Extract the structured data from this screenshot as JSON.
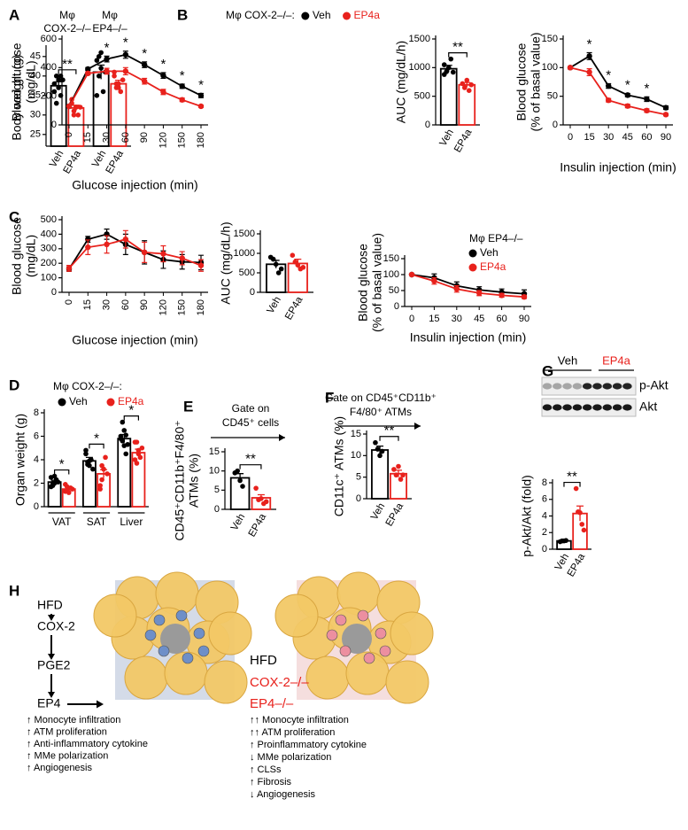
{
  "panels": [
    "A",
    "B",
    "C",
    "D",
    "E",
    "F",
    "G",
    "H"
  ],
  "chart_data": [
    {
      "type": "bar",
      "categories": [
        [
          "Mφ",
          "COX-2–/–"
        ],
        [
          "Mφ",
          "EP4–/–"
        ]
      ],
      "ylabel": [
        "Body weight (g)"
      ],
      "ylim": [
        22,
        47
      ],
      "yticks": [
        25,
        30,
        35,
        40,
        45
      ],
      "significance": [
        "**",
        null
      ],
      "series": [
        {
          "name": "Veh",
          "color": "#000000",
          "values": [
            37.5,
            41
          ],
          "errors": [
            1.0,
            1.8
          ],
          "points": [
            [
              38,
              40,
              37,
              35,
              39,
              36,
              33,
              39,
              40
            ],
            [
              44,
              40,
              46,
              36,
              41,
              35,
              45,
              42
            ]
          ]
        },
        {
          "name": "EP4a",
          "color": "#e8211c",
          "values": [
            31.8,
            38
          ],
          "errors": [
            0.7,
            0.9
          ],
          "points": [
            [
              33,
              31,
              32,
              30,
              32,
              34,
              30,
              32
            ],
            [
              40,
              38,
              37,
              36,
              39,
              41,
              37,
              38
            ]
          ]
        }
      ]
    },
    {
      "type": "line",
      "legend_title": "Mφ COX-2–/–:",
      "categories": [
        "0",
        "15",
        "30",
        "60",
        "90",
        "120",
        "150",
        "180"
      ],
      "xlabel": "Glucose injection (min)",
      "ylabel": [
        "Blood glucose",
        "(mg/dL)"
      ],
      "ylim": [
        0,
        600
      ],
      "yticks": [
        0,
        200,
        400,
        600
      ],
      "significance": [
        null,
        null,
        "*",
        "*",
        "*",
        "*",
        "*",
        "*"
      ],
      "series": [
        {
          "name": "Veh",
          "color": "#000000",
          "values": [
            130,
            390,
            460,
            490,
            420,
            345,
            270,
            205
          ],
          "errors": [
            5,
            10,
            20,
            25,
            20,
            20,
            15,
            15
          ]
        },
        {
          "name": "EP4a",
          "color": "#e8211c",
          "values": [
            130,
            360,
            375,
            375,
            305,
            230,
            175,
            130
          ],
          "errors": [
            5,
            10,
            20,
            25,
            20,
            18,
            12,
            8
          ]
        }
      ]
    },
    {
      "type": "bar",
      "categories": [
        null
      ],
      "ylabel": [
        "AUC (mg/dL/h)"
      ],
      "ylim": [
        0,
        1500
      ],
      "yticks": [
        0,
        500,
        1000,
        1500
      ],
      "significance": [
        "**"
      ],
      "series": [
        {
          "name": "Veh",
          "color": "#000000",
          "values": [
            980
          ],
          "errors": [
            60
          ],
          "points": [
            [
              1050,
              930,
              1000,
              1150,
              920,
              880
            ]
          ]
        },
        {
          "name": "EP4a",
          "color": "#e8211c",
          "values": [
            700
          ],
          "errors": [
            40
          ],
          "points": [
            [
              720,
              650,
              780,
              600,
              700
            ]
          ]
        }
      ]
    },
    {
      "type": "line",
      "categories": [
        "0",
        "15",
        "30",
        "45",
        "60",
        "90"
      ],
      "xlabel": "Insulin injection (min)",
      "ylabel": [
        "Blood glucose",
        "(% of basal value)"
      ],
      "ylim": [
        0,
        150
      ],
      "yticks": [
        0,
        50,
        100,
        150
      ],
      "significance": [
        null,
        "*",
        "*",
        "*",
        "*",
        null
      ],
      "series": [
        {
          "name": "Veh",
          "color": "#000000",
          "values": [
            100,
            120,
            68,
            52,
            45,
            30
          ],
          "errors": [
            2,
            6,
            4,
            3,
            4,
            3
          ]
        },
        {
          "name": "EP4a",
          "color": "#e8211c",
          "values": [
            100,
            92,
            43,
            33,
            25,
            18
          ],
          "errors": [
            2,
            6,
            3,
            3,
            3,
            2
          ]
        }
      ]
    },
    {
      "type": "line",
      "categories": [
        "0",
        "15",
        "30",
        "60",
        "90",
        "120",
        "150",
        "180"
      ],
      "xlabel": "Glucose injection (min)",
      "ylabel": [
        "Blood glucose",
        "(mg/dL)"
      ],
      "ylim": [
        0,
        500
      ],
      "yticks": [
        0,
        100,
        200,
        300,
        400,
        500
      ],
      "series": [
        {
          "name": "Veh",
          "color": "#000000",
          "values": [
            160,
            365,
            400,
            330,
            275,
            225,
            210,
            205
          ],
          "errors": [
            15,
            20,
            35,
            70,
            80,
            60,
            50,
            50
          ]
        },
        {
          "name": "EP4a",
          "color": "#e8211c",
          "values": [
            165,
            310,
            330,
            365,
            275,
            265,
            235,
            185
          ],
          "errors": [
            20,
            50,
            60,
            60,
            70,
            55,
            45,
            40
          ]
        }
      ]
    },
    {
      "type": "bar",
      "categories": [
        null
      ],
      "ylabel": [
        "AUC (mg/dL/h)"
      ],
      "ylim": [
        0,
        1500
      ],
      "yticks": [
        0,
        500,
        1000,
        1500
      ],
      "series": [
        {
          "name": "Veh",
          "color": "#000000",
          "values": [
            720
          ],
          "errors": [
            100
          ],
          "points": [
            [
              900,
              850,
              720,
              500,
              600
            ]
          ]
        },
        {
          "name": "EP4a",
          "color": "#e8211c",
          "values": [
            740
          ],
          "errors": [
            110
          ],
          "points": [
            [
              950,
              780,
              700,
              600,
              640
            ]
          ]
        }
      ]
    },
    {
      "type": "line",
      "legend_title": "Mφ EP4–/–",
      "categories": [
        "0",
        "15",
        "30",
        "45",
        "60",
        "90"
      ],
      "xlabel": "Insulin injection (min)",
      "ylabel": [
        "Blood glucose",
        "(% of basal value)"
      ],
      "ylim": [
        0,
        150
      ],
      "yticks": [
        0,
        50,
        100,
        150
      ],
      "series": [
        {
          "name": "Veh",
          "color": "#000000",
          "values": [
            100,
            90,
            65,
            52,
            45,
            40
          ],
          "errors": [
            2,
            12,
            12,
            10,
            10,
            12
          ]
        },
        {
          "name": "EP4a",
          "color": "#e8211c",
          "values": [
            100,
            80,
            55,
            42,
            35,
            30
          ],
          "errors": [
            2,
            10,
            10,
            8,
            6,
            5
          ]
        }
      ]
    },
    {
      "type": "bar",
      "legend_title": "Mφ COX-2–/–:",
      "categories": [
        "VAT",
        "SAT",
        "Liver"
      ],
      "ylabel": [
        "Organ weight (g)"
      ],
      "ylim": [
        0,
        8
      ],
      "yticks": [
        0,
        2,
        4,
        6,
        8
      ],
      "significance": [
        "*",
        "*",
        "*"
      ],
      "series": [
        {
          "name": "Veh",
          "color": "#000000",
          "values": [
            2.1,
            3.9,
            5.8
          ],
          "errors": [
            0.15,
            0.3,
            0.35
          ],
          "points": [
            [
              2.5,
              1.8,
              2.0,
              2.3,
              2.1,
              1.7,
              2.0,
              2.6
            ],
            [
              4.5,
              3.8,
              3.5,
              4.0,
              3.2,
              4.8,
              3.6,
              3.9
            ],
            [
              5.8,
              7.2,
              6.5,
              4.5,
              5.3,
              6.0,
              5.6,
              5.2,
              6.1
            ]
          ]
        },
        {
          "name": "EP4a",
          "color": "#e8211c",
          "values": [
            1.5,
            2.8,
            4.6
          ],
          "errors": [
            0.12,
            0.35,
            0.3
          ],
          "points": [
            [
              1.3,
              1.7,
              1.2,
              1.6,
              1.5,
              1.9,
              1.4
            ],
            [
              1.5,
              2.3,
              3.2,
              4.2,
              2.8,
              1.8,
              3.5
            ],
            [
              5.5,
              3.7,
              4.8,
              4.2,
              5.0,
              4.0,
              5.5,
              4.5
            ]
          ]
        }
      ]
    },
    {
      "type": "bar",
      "title": [
        "Gate on",
        "CD45⁺ cells"
      ],
      "categories": [
        null
      ],
      "ylabel": [
        "CD45⁺CD11b⁺F4/80⁺",
        "ATMs (%)"
      ],
      "ylim": [
        0,
        15
      ],
      "yticks": [
        0,
        5,
        10,
        15
      ],
      "significance": [
        "**"
      ],
      "series": [
        {
          "name": "Veh",
          "color": "#000000",
          "values": [
            8.2
          ],
          "errors": [
            1.1
          ],
          "points": [
            [
              9.5,
              10,
              7.5,
              6
            ]
          ]
        },
        {
          "name": "EP4a",
          "color": "#e8211c",
          "values": [
            3.0
          ],
          "errors": [
            0.8
          ],
          "points": [
            [
              5.5,
              2.5,
              2.8,
              1.5,
              2
            ]
          ]
        }
      ]
    },
    {
      "type": "bar",
      "title": [
        "Gate on CD45⁺CD11b⁺",
        "F4/80⁺ ATMs"
      ],
      "categories": [
        null
      ],
      "ylabel": [
        "CD11c⁺ ATMs (%)"
      ],
      "ylim": [
        0,
        15
      ],
      "yticks": [
        0,
        5,
        10,
        15
      ],
      "significance": [
        "**"
      ],
      "series": [
        {
          "name": "Veh",
          "color": "#000000",
          "values": [
            11.3
          ],
          "errors": [
            0.9
          ],
          "points": [
            [
              13,
              11.5,
              10,
              11
            ]
          ]
        },
        {
          "name": "EP4a",
          "color": "#e8211c",
          "values": [
            5.8
          ],
          "errors": [
            0.8
          ],
          "points": [
            [
              6.8,
              5.5,
              7.5,
              4.5,
              5.5
            ]
          ]
        }
      ]
    },
    {
      "type": "bar",
      "categories": [
        null
      ],
      "ylabel": [
        "p-Akt/Akt (fold)"
      ],
      "ylim": [
        0,
        8
      ],
      "yticks": [
        0,
        2,
        4,
        6,
        8
      ],
      "significance": [
        "**"
      ],
      "series": [
        {
          "name": "Veh",
          "color": "#000000",
          "values": [
            1.0
          ],
          "errors": [
            0.05
          ],
          "points": [
            [
              0.9,
              1,
              1,
              1.05
            ]
          ]
        },
        {
          "name": "EP4a",
          "color": "#e8211c",
          "values": [
            4.3
          ],
          "errors": [
            0.9
          ],
          "points": [
            [
              7.3,
              4.5,
              4.4,
              3,
              2.3
            ]
          ]
        }
      ]
    }
  ],
  "blot": {
    "groups": [
      "Veh",
      "EP4a"
    ],
    "rows": [
      "p-Akt",
      "Akt"
    ]
  },
  "diagram": {
    "left_chain": [
      "HFD",
      "COX-2",
      "PGE2",
      "EP4"
    ],
    "left_effects": [
      "↑ Monocyte infiltration",
      "↑ ATM proliferation",
      "↑ Anti-inflammatory cytokine",
      "↑ MMe polarization",
      "↑ Angiogenesis"
    ],
    "right_header": [
      "HFD",
      "COX-2–/–",
      "EP4–/–"
    ],
    "right_effects": [
      "↑↑ Monocyte infiltration",
      "↑↑ ATM proliferation",
      "↑ Proinflammatory cytokine",
      "↓ MMe polarization",
      "↑ CLSs",
      "↑ Fibrosis",
      "↓ Angiogenesis"
    ]
  }
}
